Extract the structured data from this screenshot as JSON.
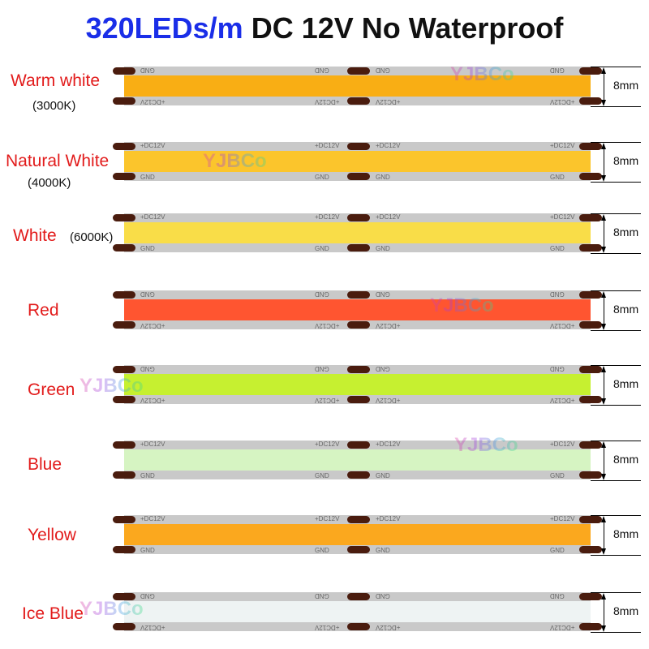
{
  "title": {
    "highlight": "320LEDs/m",
    "rest": " DC 12V No Waterproof",
    "highlight_color": "#1a2ee8"
  },
  "watermark": "YJBCo",
  "pcb_labels": {
    "positive": "+DC12V",
    "ground": "GND"
  },
  "width_label": "8mm",
  "strips": [
    {
      "name": "Warm white",
      "temp": "(3000K)",
      "color": "#f9ae14",
      "flipped": true
    },
    {
      "name": "Natural White",
      "temp": "(4000K)",
      "color": "#fbc52c",
      "flipped": false
    },
    {
      "name": "White",
      "temp": "(6000K)",
      "color": "#f9dd48",
      "flipped": false
    },
    {
      "name": "Red",
      "temp": "",
      "color": "#ff5530",
      "flipped": true
    },
    {
      "name": "Green",
      "temp": "",
      "color": "#c6f030",
      "flipped": true
    },
    {
      "name": "Blue",
      "temp": "",
      "color": "#d6f4c2",
      "flipped": false
    },
    {
      "name": "Yellow",
      "temp": "",
      "color": "#fba81e",
      "flipped": false
    },
    {
      "name": "Ice Blue",
      "temp": "",
      "color": "#eef3f3",
      "flipped": true
    }
  ]
}
